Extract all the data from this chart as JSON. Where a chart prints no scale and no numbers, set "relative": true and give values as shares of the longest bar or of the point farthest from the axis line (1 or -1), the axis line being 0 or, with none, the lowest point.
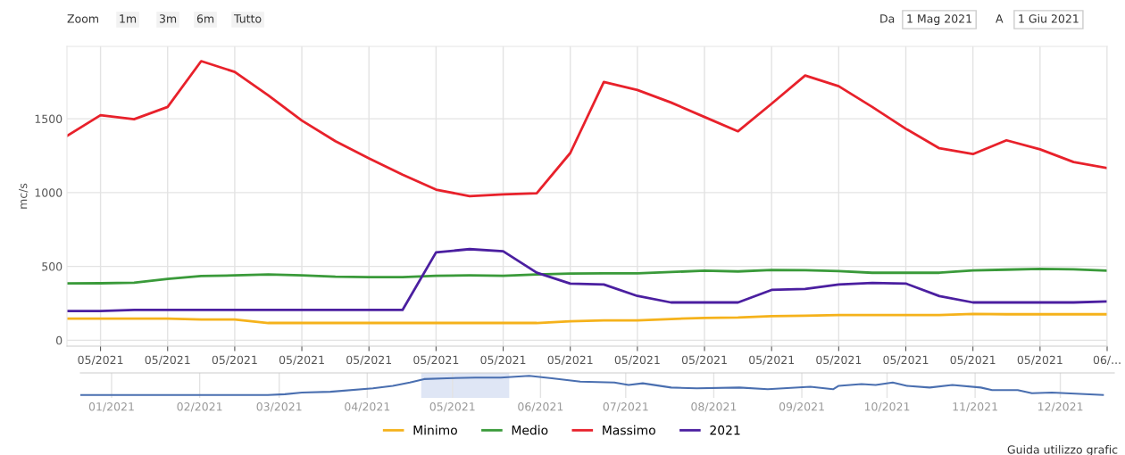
{
  "chart_data": [
    {
      "type": "line",
      "ylabel": "mc/s",
      "x": [
        "2021-05-01",
        "2021-05-02",
        "2021-05-03",
        "2021-05-04",
        "2021-05-05",
        "2021-05-06",
        "2021-05-07",
        "2021-05-08",
        "2021-05-09",
        "2021-05-10",
        "2021-05-11",
        "2021-05-12",
        "2021-05-13",
        "2021-05-14",
        "2021-05-15",
        "2021-05-16",
        "2021-05-17",
        "2021-05-18",
        "2021-05-19",
        "2021-05-20",
        "2021-05-21",
        "2021-05-22",
        "2021-05-23",
        "2021-05-24",
        "2021-05-25",
        "2021-05-26",
        "2021-05-27",
        "2021-05-28",
        "2021-05-29",
        "2021-05-30",
        "2021-05-31",
        "2021-06-01"
      ],
      "series": [
        {
          "name": "Minimo",
          "color": "#f5b21b",
          "values": [
            146,
            146,
            146,
            146,
            140,
            140,
            117,
            117,
            117,
            117,
            117,
            117,
            117,
            117,
            117,
            129,
            134,
            134,
            144,
            151,
            154,
            163,
            166,
            171,
            171,
            171,
            171,
            178,
            176,
            176,
            176,
            176
          ]
        },
        {
          "name": "Medio",
          "color": "#3a9a3a",
          "values": [
            385,
            386,
            390,
            415,
            435,
            439,
            445,
            440,
            430,
            427,
            427,
            437,
            439,
            436,
            445,
            451,
            453,
            453,
            462,
            471,
            466,
            476,
            474,
            468,
            457,
            457,
            457,
            473,
            478,
            483,
            480,
            471
          ]
        },
        {
          "name": "Massimo",
          "color": "#e8212b",
          "values": [
            1384,
            1524,
            1497,
            1580,
            1890,
            1817,
            1658,
            1488,
            1348,
            1232,
            1122,
            1020,
            976,
            988,
            995,
            1268,
            1749,
            1695,
            1610,
            1512,
            1415,
            1602,
            1793,
            1720,
            1580,
            1432,
            1300,
            1261,
            1354,
            1293,
            1207,
            1166
          ]
        },
        {
          "name": "2021",
          "color": "#4b1fa0",
          "values": [
            198,
            198,
            205,
            205,
            205,
            205,
            205,
            205,
            205,
            205,
            205,
            595,
            617,
            603,
            458,
            384,
            378,
            300,
            256,
            256,
            256,
            341,
            347,
            378,
            388,
            384,
            299,
            256,
            256,
            256,
            256,
            263
          ]
        }
      ],
      "xlim": [
        "2021-05-01",
        "2021-06-01"
      ],
      "xticks": [
        {
          "value": "2021-05-02",
          "label": "05/2021"
        },
        {
          "value": "2021-05-04",
          "label": "05/2021"
        },
        {
          "value": "2021-05-06",
          "label": "05/2021"
        },
        {
          "value": "2021-05-08",
          "label": "05/2021"
        },
        {
          "value": "2021-05-10",
          "label": "05/2021"
        },
        {
          "value": "2021-05-12",
          "label": "05/2021"
        },
        {
          "value": "2021-05-14",
          "label": "05/2021"
        },
        {
          "value": "2021-05-16",
          "label": "05/2021"
        },
        {
          "value": "2021-05-18",
          "label": "05/2021"
        },
        {
          "value": "2021-05-20",
          "label": "05/2021"
        },
        {
          "value": "2021-05-22",
          "label": "05/2021"
        },
        {
          "value": "2021-05-24",
          "label": "05/2021"
        },
        {
          "value": "2021-05-26",
          "label": "05/2021"
        },
        {
          "value": "2021-05-28",
          "label": "05/2021"
        },
        {
          "value": "2021-05-30",
          "label": "05/2021"
        },
        {
          "value": "2021-06-01",
          "label": "06/..."
        }
      ],
      "ylim": [
        -40,
        1990
      ],
      "yticks": [
        0,
        500,
        1000,
        1500
      ],
      "grid": true,
      "legend": "bottom",
      "marker": "none",
      "line_style": "solid",
      "annotations": [
        "Zoom",
        "1m",
        "3m",
        "6m",
        "Tutto",
        "Da",
        "1 Mag 2021",
        "A",
        "1 Giu 2021",
        "Guida utilizzo grafic"
      ]
    },
    {
      "type": "line",
      "x": [
        "2021-01-01",
        "2021-03-08",
        "2021-03-14",
        "2021-03-20",
        "2021-03-30",
        "2021-04-14",
        "2021-04-21",
        "2021-04-27",
        "2021-05-02",
        "2021-05-10",
        "2021-05-20",
        "2021-05-29",
        "2021-06-08",
        "2021-06-16",
        "2021-06-26",
        "2021-07-08",
        "2021-07-13",
        "2021-07-18",
        "2021-07-28",
        "2021-08-06",
        "2021-08-21",
        "2021-08-31",
        "2021-09-15",
        "2021-09-23",
        "2021-09-25",
        "2021-10-03",
        "2021-10-08",
        "2021-10-14",
        "2021-10-19",
        "2021-10-27",
        "2021-11-04",
        "2021-11-14",
        "2021-11-18",
        "2021-11-27",
        "2021-12-02",
        "2021-12-09",
        "2021-12-27"
      ],
      "series": [
        {
          "color": "#4a6fb0",
          "values": [
            0,
            0,
            0.04,
            0.13,
            0.17,
            0.35,
            0.48,
            0.65,
            0.83,
            0.87,
            0.91,
            0.91,
            1,
            0.87,
            0.7,
            0.65,
            0.52,
            0.61,
            0.39,
            0.35,
            0.39,
            0.3,
            0.43,
            0.3,
            0.48,
            0.57,
            0.52,
            0.65,
            0.48,
            0.39,
            0.52,
            0.39,
            0.26,
            0.26,
            0.09,
            0.13,
            0
          ]
        }
      ],
      "relative": true,
      "xlim": [
        "2021-01-01",
        "2021-12-31"
      ],
      "xticks": [
        {
          "value": "2021-01-12",
          "label": "01/2021"
        },
        {
          "value": "2021-02-12",
          "label": "02/2021"
        },
        {
          "value": "2021-03-12",
          "label": "03/2021"
        },
        {
          "value": "2021-04-12",
          "label": "04/2021"
        },
        {
          "value": "2021-05-12",
          "label": "05/2021"
        },
        {
          "value": "2021-06-12",
          "label": "06/2021"
        },
        {
          "value": "2021-07-12",
          "label": "07/2021"
        },
        {
          "value": "2021-08-12",
          "label": "08/2021"
        },
        {
          "value": "2021-09-12",
          "label": "09/2021"
        },
        {
          "value": "2021-10-12",
          "label": "10/2021"
        },
        {
          "value": "2021-11-12",
          "label": "11/2021"
        },
        {
          "value": "2021-12-12",
          "label": "12/2021"
        }
      ],
      "bands": [
        {
          "axis": "x",
          "from": "2021-05-01",
          "to": "2021-06-01",
          "color": "#dfe6f5"
        }
      ],
      "grid": "x",
      "tick_labels": "x"
    }
  ]
}
